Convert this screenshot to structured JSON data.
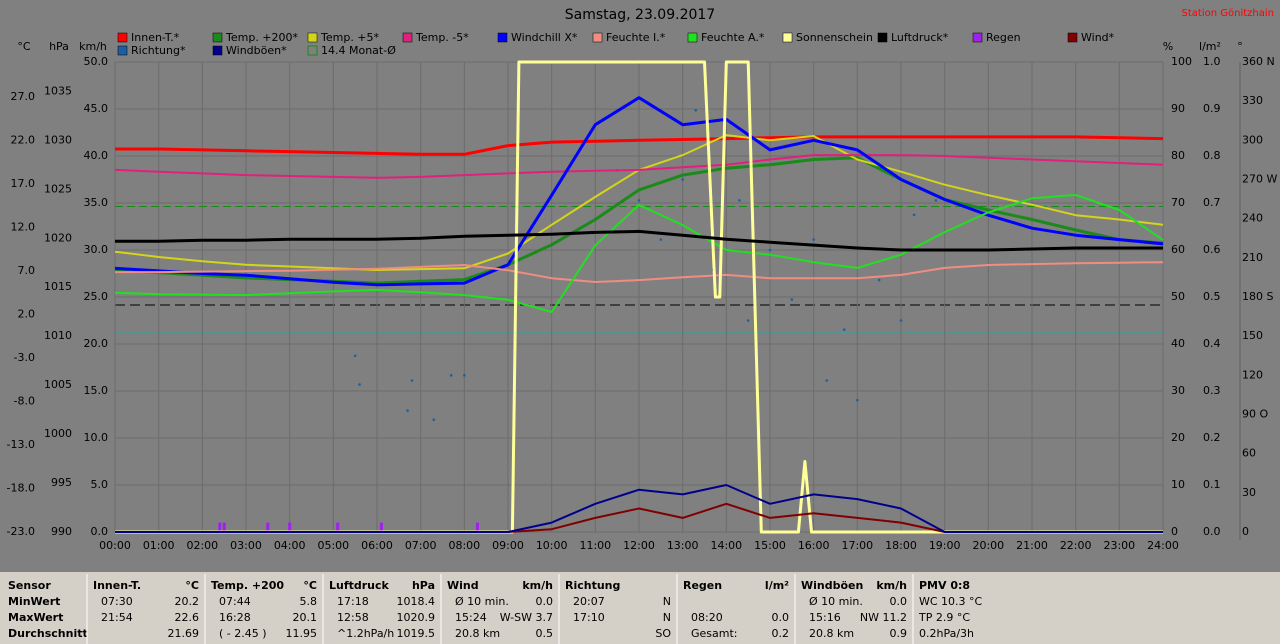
{
  "station": "Station Gönitzhain",
  "chart_data": {
    "type": "line",
    "title": "Samstag, 23.09.2017",
    "x": [
      0,
      1,
      2,
      3,
      4,
      5,
      6,
      7,
      8,
      9,
      10,
      11,
      12,
      13,
      14,
      15,
      16,
      17,
      18,
      19,
      20,
      21,
      22,
      23,
      24
    ],
    "xlim": [
      0,
      24
    ],
    "xticks": [
      {
        "value": 0,
        "label": "00:00"
      },
      {
        "value": 1,
        "label": "01:00"
      },
      {
        "value": 2,
        "label": "02:00"
      },
      {
        "value": 3,
        "label": "03:00"
      },
      {
        "value": 4,
        "label": "04:00"
      },
      {
        "value": 5,
        "label": "05:00"
      },
      {
        "value": 6,
        "label": "06:00"
      },
      {
        "value": 7,
        "label": "07:00"
      },
      {
        "value": 8,
        "label": "08:00"
      },
      {
        "value": 9,
        "label": "09:00"
      },
      {
        "value": 10,
        "label": "10:00"
      },
      {
        "value": 11,
        "label": "11:00"
      },
      {
        "value": 12,
        "label": "12:00"
      },
      {
        "value": 13,
        "label": "13:00"
      },
      {
        "value": 14,
        "label": "14:00"
      },
      {
        "value": 15,
        "label": "15:00"
      },
      {
        "value": 16,
        "label": "16:00"
      },
      {
        "value": 17,
        "label": "17:00"
      },
      {
        "value": 18,
        "label": "18:00"
      },
      {
        "value": 19,
        "label": "19:00"
      },
      {
        "value": 20,
        "label": "20:00"
      },
      {
        "value": 21,
        "label": "21:00"
      },
      {
        "value": 22,
        "label": "22:00"
      },
      {
        "value": 23,
        "label": "23:00"
      },
      {
        "value": 24,
        "label": "24:00"
      }
    ],
    "grid": true,
    "grid_axis": "wind",
    "axes": {
      "temp": {
        "label": "°C",
        "lim": [
          -23,
          31
        ],
        "ticks": [
          {
            "value": 27,
            "label": "27.0"
          },
          {
            "value": 22,
            "label": "22.0"
          },
          {
            "value": 17,
            "label": "17.0"
          },
          {
            "value": 12,
            "label": "12.0"
          },
          {
            "value": 7,
            "label": "7.0"
          },
          {
            "value": 2,
            "label": "2.0"
          },
          {
            "value": -3,
            "label": "-3.0"
          },
          {
            "value": -8,
            "label": "-8.0"
          },
          {
            "value": -13,
            "label": "-13.0"
          },
          {
            "value": -18,
            "label": "-18.0"
          },
          {
            "value": -23,
            "label": "-23.0"
          }
        ]
      },
      "pressure": {
        "label": "hPa",
        "lim": [
          990,
          1038
        ],
        "ticks": [
          1035,
          1030,
          1025,
          1020,
          1015,
          1010,
          1005,
          1000,
          995,
          990
        ]
      },
      "wind": {
        "label": "km/h",
        "lim": [
          0,
          50
        ],
        "ticks": [
          {
            "value": 50,
            "label": "50.0"
          },
          {
            "value": 45,
            "label": "45.0"
          },
          {
            "value": 40,
            "label": "40.0"
          },
          {
            "value": 35,
            "label": "35.0"
          },
          {
            "value": 30,
            "label": "30.0"
          },
          {
            "value": 25,
            "label": "25.0"
          },
          {
            "value": 20,
            "label": "20.0"
          },
          {
            "value": 15,
            "label": "15.0"
          },
          {
            "value": 10,
            "label": "10.0"
          },
          {
            "value": 5,
            "label": "5.0"
          },
          {
            "value": 0,
            "label": "0.0"
          }
        ]
      },
      "percent": {
        "label": "%",
        "lim": [
          0,
          100
        ],
        "ticks": [
          100,
          90,
          80,
          70,
          60,
          50,
          40,
          30,
          20,
          10,
          0
        ]
      },
      "rain": {
        "label": "l/m²",
        "lim": [
          0,
          1
        ],
        "ticks": [
          {
            "value": 1,
            "label": "1.0"
          },
          {
            "value": 0.9,
            "label": "0.9"
          },
          {
            "value": 0.8,
            "label": "0.8"
          },
          {
            "value": 0.7,
            "label": "0.7"
          },
          {
            "value": 0.6,
            "label": "0.6"
          },
          {
            "value": 0.5,
            "label": "0.5"
          },
          {
            "value": 0.4,
            "label": "0.4"
          },
          {
            "value": 0.3,
            "label": "0.3"
          },
          {
            "value": 0.2,
            "label": "0.2"
          },
          {
            "value": 0.1,
            "label": "0.1"
          },
          {
            "value": 0,
            "label": "0.0"
          }
        ]
      },
      "direction": {
        "label": "°",
        "lim": [
          0,
          360
        ],
        "ticks": [
          {
            "value": 360,
            "label": "360 N"
          },
          330,
          300,
          {
            "value": 270,
            "label": "270 W"
          },
          240,
          210,
          {
            "value": 180,
            "label": "180 S"
          },
          150,
          120,
          {
            "value": 90,
            "label": "90 O"
          },
          60,
          30,
          0
        ]
      }
    },
    "series": [
      {
        "name": "Innen-T.*",
        "color": "#ff0000",
        "axis": "temp",
        "width": 3,
        "values": [
          21.0,
          21.0,
          20.9,
          20.8,
          20.7,
          20.6,
          20.5,
          20.4,
          20.4,
          21.4,
          21.8,
          21.9,
          22.0,
          22.1,
          22.2,
          22.3,
          22.4,
          22.4,
          22.4,
          22.4,
          22.4,
          22.4,
          22.4,
          22.3,
          22.2
        ]
      },
      {
        "name": "Temp. +200*",
        "color": "#1a8a1a",
        "axis": "temp",
        "width": 3,
        "values": [
          7.1,
          6.8,
          6.5,
          6.2,
          6.0,
          5.8,
          5.6,
          5.8,
          6.0,
          7.7,
          10.0,
          12.9,
          16.3,
          18.0,
          18.8,
          19.2,
          19.8,
          20.0,
          17.5,
          15.2,
          14.0,
          12.9,
          11.7,
          10.6,
          10.2
        ]
      },
      {
        "name": "Temp. +5*",
        "color": "#d4d41a",
        "axis": "temp",
        "width": 2,
        "values": [
          9.2,
          8.6,
          8.1,
          7.7,
          7.5,
          7.3,
          7.1,
          7.2,
          7.3,
          9.0,
          12.3,
          15.5,
          18.6,
          20.3,
          22.6,
          22.0,
          22.5,
          19.8,
          18.4,
          16.9,
          15.7,
          14.6,
          13.4,
          12.9,
          12.3
        ]
      },
      {
        "name": "Temp. -5*",
        "color": "#e0207a",
        "axis": "temp",
        "width": 2,
        "values": [
          18.6,
          18.4,
          18.2,
          18.0,
          17.9,
          17.8,
          17.7,
          17.8,
          18.0,
          18.2,
          18.4,
          18.5,
          18.6,
          18.9,
          19.2,
          19.8,
          20.3,
          20.3,
          20.3,
          20.2,
          20.0,
          19.8,
          19.6,
          19.4,
          19.2
        ]
      },
      {
        "name": "Windchill X*",
        "color": "#0000ff",
        "axis": "temp",
        "width": 3,
        "values": [
          7.3,
          7.0,
          6.7,
          6.5,
          6.1,
          5.7,
          5.4,
          5.5,
          5.6,
          7.7,
          15.7,
          23.8,
          26.9,
          23.8,
          24.4,
          20.9,
          22.0,
          20.9,
          17.5,
          15.2,
          13.4,
          11.9,
          11.1,
          10.6,
          10.1
        ]
      },
      {
        "name": "Feuchte I.*",
        "color": "#f08c80",
        "axis": "percent",
        "width": 2,
        "values": [
          55.3,
          55.3,
          55.4,
          55.5,
          55.6,
          55.8,
          56.0,
          56.4,
          56.8,
          55.7,
          54.0,
          53.2,
          53.6,
          54.2,
          54.7,
          54.0,
          54.0,
          54.0,
          54.7,
          56.2,
          56.8,
          57.0,
          57.2,
          57.3,
          57.4
        ]
      },
      {
        "name": "Feuchte A.*",
        "color": "#20e020",
        "axis": "percent",
        "width": 2,
        "values": [
          50.9,
          50.6,
          50.5,
          50.4,
          50.8,
          51.2,
          51.5,
          51.0,
          50.4,
          49.4,
          46.8,
          61.0,
          69.6,
          65.3,
          60.0,
          59.0,
          57.4,
          56.2,
          59.0,
          63.8,
          68.0,
          71.0,
          71.7,
          68.5,
          62.1
        ]
      },
      {
        "name": "Sonnenschein",
        "color": "#ffff99",
        "axis": "percent",
        "width": 3,
        "x": [
          0,
          9.1,
          9.25,
          13.5,
          13.75,
          13.85,
          14.0,
          14.5,
          14.8,
          15.65,
          15.8,
          15.95,
          24
        ],
        "values": [
          0,
          0,
          100,
          100,
          50,
          50,
          100,
          100,
          0,
          0,
          15,
          0,
          0
        ]
      },
      {
        "name": "Luftdruck*",
        "color": "#000000",
        "axis": "pressure",
        "width": 3,
        "values": [
          1019.7,
          1019.7,
          1019.8,
          1019.8,
          1019.9,
          1019.9,
          1019.9,
          1020.0,
          1020.2,
          1020.3,
          1020.4,
          1020.6,
          1020.7,
          1020.3,
          1019.9,
          1019.6,
          1019.3,
          1019.0,
          1018.8,
          1018.8,
          1018.8,
          1018.9,
          1019.0,
          1019.0,
          1019.0
        ]
      },
      {
        "name": "Regen",
        "color": "#a020f0",
        "axis": "rain",
        "mark": "bar",
        "x": [
          2.4,
          2.5,
          3.5,
          4.0,
          5.1,
          6.1,
          8.3
        ],
        "values": [
          0.02,
          0.02,
          0.02,
          0.02,
          0.02,
          0.02,
          0.02
        ]
      },
      {
        "name": "Wind*",
        "color": "#800000",
        "axis": "wind",
        "width": 2,
        "values": [
          0,
          0,
          0,
          0,
          0,
          0,
          0,
          0,
          0,
          0,
          0.3,
          1.5,
          2.5,
          1.5,
          3.0,
          1.5,
          2.0,
          1.5,
          1.0,
          0,
          0,
          0,
          0,
          0,
          0
        ]
      },
      {
        "name": "Richtung*",
        "color": "#1f5f9f",
        "axis": "direction",
        "mark": "scatter",
        "x": [
          5.5,
          5.6,
          6.7,
          6.8,
          7.3,
          7.7,
          8.0,
          11.5,
          12.0,
          12.5,
          13.0,
          13.3,
          13.7,
          14.3,
          14.5,
          15.0,
          15.5,
          16.0,
          16.3,
          16.7,
          17.0,
          17.5,
          18.0,
          18.3,
          18.8
        ],
        "values": [
          135,
          113,
          93,
          116,
          86,
          120,
          120,
          277,
          254,
          224,
          270,
          323,
          201,
          254,
          162,
          216,
          178,
          224,
          116,
          155,
          101,
          193,
          162,
          243,
          254
        ]
      },
      {
        "name": "Windböen*",
        "color": "#00008b",
        "axis": "wind",
        "width": 2,
        "values": [
          0,
          0,
          0,
          0,
          0,
          0,
          0,
          0,
          0,
          0,
          1.0,
          3.0,
          4.5,
          4.0,
          5.0,
          3.0,
          4.0,
          3.5,
          2.5,
          0,
          0,
          0,
          0,
          0,
          0
        ]
      },
      {
        "name": "14.4 Monat-Ø",
        "color": "#1a8a1a",
        "axis": "temp",
        "mark": "hline",
        "value": 14.4
      }
    ]
  },
  "table": {
    "row_labels": [
      "Sensor",
      "MinWert",
      "MaxWert",
      "Durchschnitt"
    ],
    "columns": [
      {
        "title": "Innen-T.",
        "unit": "°C",
        "rows": [
          [
            "07:30",
            "20.2"
          ],
          [
            "21:54",
            "22.6"
          ],
          [
            null,
            "21.69"
          ]
        ]
      },
      {
        "title": "Temp. +200",
        "unit": "°C",
        "rows": [
          [
            "07:44",
            "5.8"
          ],
          [
            "16:28",
            "20.1"
          ],
          [
            "( - 2.45 )",
            "11.95"
          ]
        ]
      },
      {
        "title": "Luftdruck",
        "unit": "hPa",
        "rows": [
          [
            "17:18",
            "1018.4"
          ],
          [
            "12:58",
            "1020.9"
          ],
          [
            "^1.2hPa/h",
            "1019.5"
          ]
        ]
      },
      {
        "title": "Wind",
        "unit": "km/h",
        "rows": [
          [
            "Ø 10 min.",
            "0.0"
          ],
          [
            "15:24",
            "W-SW 3.7"
          ],
          [
            "20.8 km",
            "0.5"
          ]
        ]
      },
      {
        "title": "Richtung",
        "rows": [
          [
            "20:07",
            "N"
          ],
          [
            "17:10",
            "N"
          ],
          [
            null,
            "SO"
          ]
        ]
      },
      {
        "title": "Regen",
        "unit": "l/m²",
        "rows": [
          [
            null,
            null
          ],
          [
            "08:20",
            "0.0"
          ],
          [
            "Gesamt:",
            "0.2"
          ]
        ]
      },
      {
        "title": "Windböen",
        "unit": "km/h",
        "rows": [
          [
            "Ø 10 min.",
            "0.0"
          ],
          [
            "15:16",
            "NW 11.2"
          ],
          [
            "20.8 km",
            "0.9"
          ]
        ]
      },
      {
        "title": "PMV 0:8",
        "rows": [
          [
            "WC 10.3 °C"
          ],
          [
            "TP 2.9 °C"
          ],
          [
            "0.2hPa/3h"
          ]
        ]
      }
    ]
  }
}
